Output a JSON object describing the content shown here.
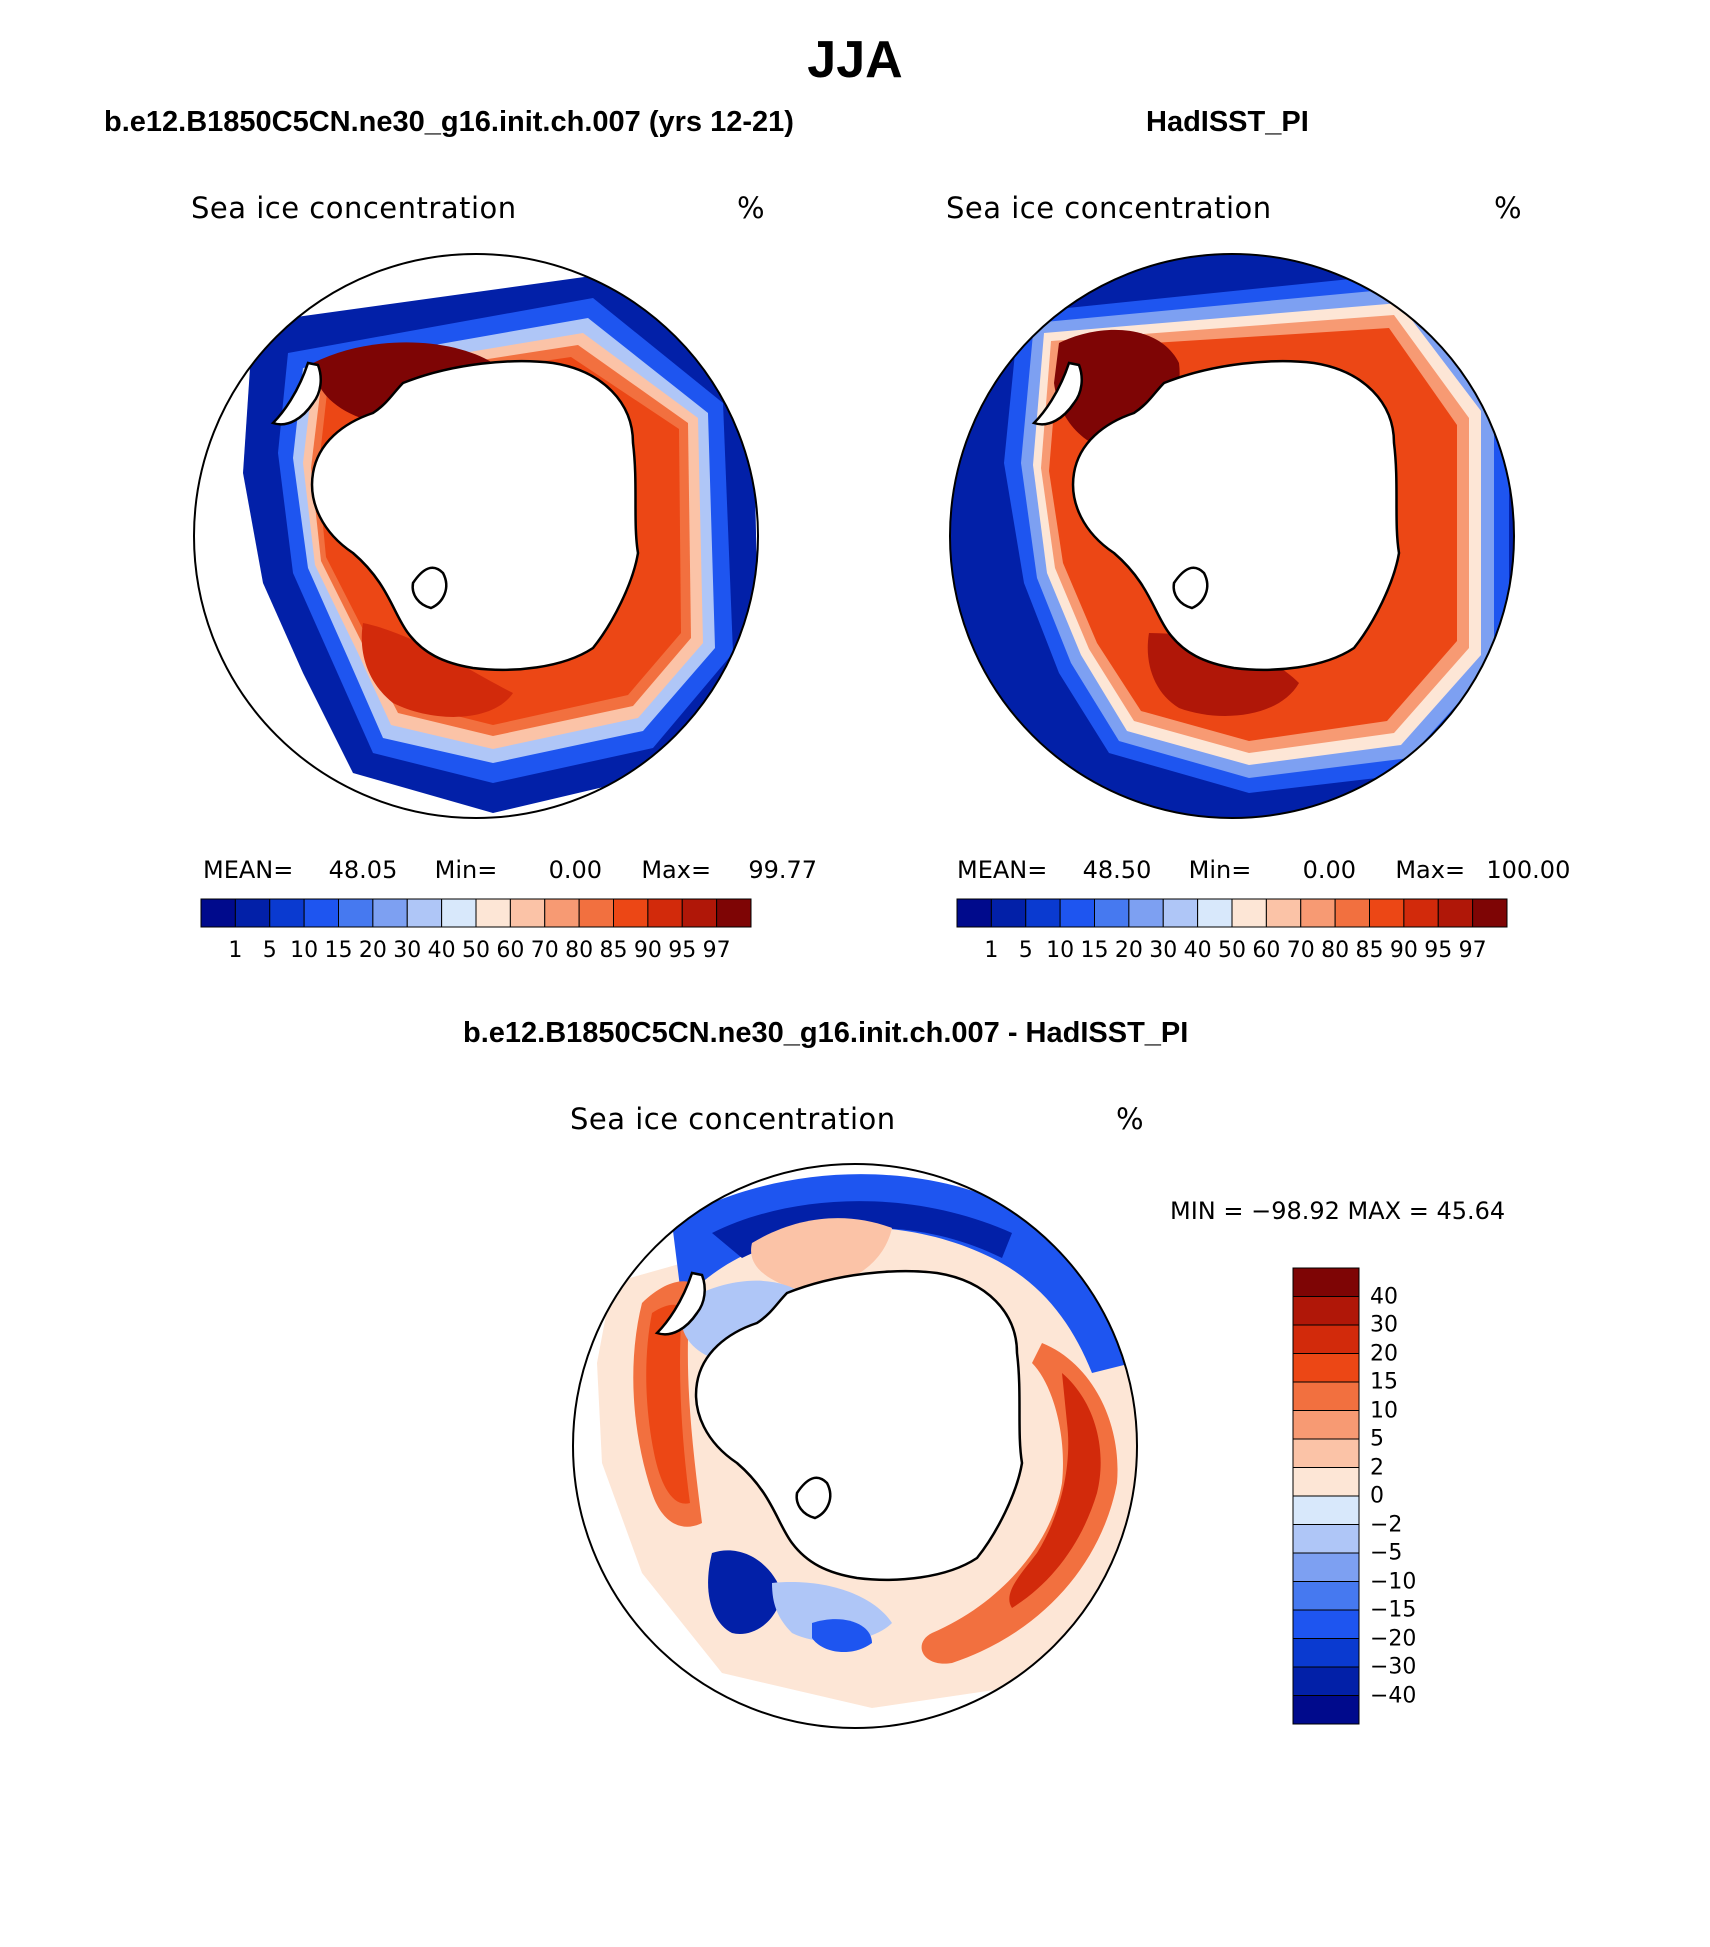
{
  "title": "JJA",
  "panels": [
    {
      "title": "b.e12.B1850C5CN.ne30_g16.init.ch.007 (yrs 12-21)",
      "variable": "Sea ice concentration",
      "units": "%",
      "stats": {
        "mean_label": "MEAN=",
        "mean": "48.05",
        "min_label": "Min=",
        "min": "0.00",
        "max_label": "Max=",
        "max": "99.77"
      }
    },
    {
      "title": "HadISST_PI",
      "variable": "Sea ice concentration",
      "units": "%",
      "stats": {
        "mean_label": "MEAN=",
        "mean": "48.50",
        "min_label": "Min=",
        "min": "0.00",
        "max_label": "Max=",
        "max": "100.00"
      }
    },
    {
      "title": "b.e12.B1850C5CN.ne30_g16.init.ch.007 - HadISST_PI",
      "variable": "Sea ice concentration",
      "units": "%",
      "minmax": "MIN = −98.92 MAX =   45.64"
    }
  ],
  "colorbar_abs": {
    "levels": [
      "1",
      "5",
      "10",
      "15",
      "20",
      "30",
      "40",
      "50",
      "60",
      "70",
      "80",
      "85",
      "90",
      "95",
      "97"
    ],
    "colors": [
      "#000a8c",
      "#0220a8",
      "#0a3ad0",
      "#1e55f0",
      "#4679f0",
      "#7da0f2",
      "#afc6f7",
      "#d8e8fb",
      "#fde6d6",
      "#fbc3a7",
      "#f79a73",
      "#f2703f",
      "#ec4715",
      "#d22a0b",
      "#b01708",
      "#7e0505"
    ]
  },
  "colorbar_diff": {
    "levels": [
      "−40",
      "−30",
      "−20",
      "−15",
      "−10",
      "−5",
      "−2",
      "0",
      "2",
      "5",
      "10",
      "15",
      "20",
      "30",
      "40"
    ],
    "colors": [
      "#000a8c",
      "#0220a8",
      "#0a3ad0",
      "#1e55f0",
      "#4679f0",
      "#7da0f2",
      "#afc6f7",
      "#d8e8fb",
      "#fde6d6",
      "#fbc3a7",
      "#f79a73",
      "#f2703f",
      "#ec4715",
      "#d22a0b",
      "#b01708",
      "#7e0505"
    ]
  }
}
